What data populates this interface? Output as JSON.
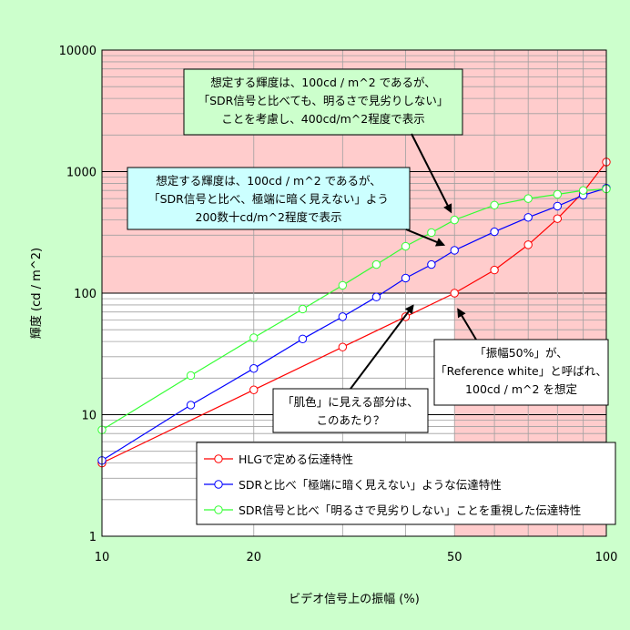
{
  "chart_data": {
    "type": "line",
    "xlabel": "ビデオ信号上の振幅 (%)",
    "ylabel": "輝度 (cd / m^2)",
    "x_scale": "log",
    "y_scale": "log",
    "xlim": [
      10,
      100
    ],
    "ylim": [
      1,
      10000
    ],
    "x_ticks": [
      "10",
      "20",
      "50",
      "100"
    ],
    "y_ticks": [
      "1",
      "10",
      "100",
      "1000",
      "10000"
    ],
    "grid": true,
    "legend_position": "bottom-right",
    "colors": {
      "background": "#ccffcc",
      "plot_background": "#ffffff",
      "highlight": "#ffcccc",
      "hlg": "#ff0000",
      "sdr_dark": "#0000ff",
      "sdr_bright": "#33ff33",
      "callout_green": "#ccffcc",
      "callout_cyan": "#ccffff"
    },
    "series": [
      {
        "name": "HLGで定める伝達特性",
        "color": "#ff0000",
        "x": [
          10,
          20,
          30,
          40,
          50,
          60,
          70,
          80,
          90,
          100
        ],
        "y": [
          4,
          16,
          36,
          64,
          100,
          155,
          250,
          410,
          680,
          1200
        ]
      },
      {
        "name": "SDRと比べ「極端に暗く見えない」ような伝達特性",
        "color": "#0000ff",
        "x": [
          10,
          15,
          20,
          25,
          30,
          35,
          40,
          45,
          50,
          60,
          70,
          80,
          90,
          100
        ],
        "y": [
          4.2,
          12,
          24,
          42,
          64,
          93,
          133,
          172,
          225,
          320,
          420,
          520,
          640,
          730
        ]
      },
      {
        "name": "SDR信号と比べ「明るさで見劣りしない」ことを重視した伝達特性",
        "color": "#33ff33",
        "x": [
          10,
          15,
          20,
          25,
          30,
          35,
          40,
          45,
          50,
          60,
          70,
          80,
          90,
          100
        ],
        "y": [
          7.5,
          21,
          43,
          74,
          116,
          172,
          243,
          315,
          400,
          530,
          600,
          650,
          700,
          720
        ]
      }
    ],
    "callouts": {
      "green": [
        "想定する輝度は、100cd / m^2 であるが、",
        "「SDR信号と比べても、明るさで見劣りしない」",
        "ことを考慮し、400cd/m^2程度で表示"
      ],
      "cyan": [
        "想定する輝度は、100cd / m^2 であるが、",
        "「SDR信号と比べ、極端に暗く見えない」よう",
        "200数十cd/m^2程度で表示"
      ],
      "amplitude": [
        "「振幅50%」が、",
        "「Reference white」と呼ばれ、",
        "100cd / m^2 を想定"
      ],
      "skin": [
        "「肌色」に見える部分は、",
        "このあたり？"
      ]
    }
  }
}
